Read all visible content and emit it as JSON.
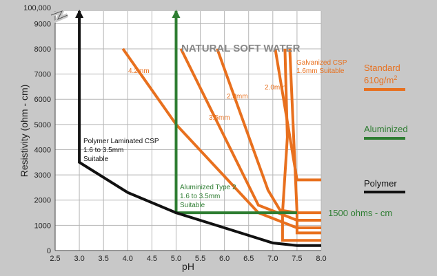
{
  "chart_data": {
    "type": "line",
    "title": "NATURAL SOFT WATER",
    "xlabel": "pH",
    "ylabel": "Resistivity (ohm - cm)",
    "xlim": [
      2.5,
      8.0
    ],
    "ylim": [
      0,
      9500
    ],
    "x_ticks": [
      "2.5",
      "3.0",
      "3.5",
      "4.0",
      "4.5",
      "5.0",
      "5.5",
      "6.0",
      "6.5",
      "7.0",
      "7.5",
      "8.0"
    ],
    "y_ticks": [
      "0",
      "1000",
      "2000",
      "3000",
      "4000",
      "5000",
      "6000",
      "7000",
      "8000",
      "9000"
    ],
    "y_top_label": "100,000",
    "grid": true,
    "colors": {
      "standard": "#e8701e",
      "aluminized": "#2e7d32",
      "polymer": "#111111"
    },
    "series": [
      {
        "name": "Standard 610g/m2",
        "label": "4.2mm",
        "color": "#e8701e",
        "points": [
          [
            3.9,
            8000
          ],
          [
            5.0,
            5000
          ],
          [
            6.7,
            1500
          ],
          [
            7.5,
            900
          ],
          [
            8.0,
            900
          ]
        ]
      },
      {
        "name": "Standard 610g/m2",
        "label": "3.5mm",
        "color": "#e8701e",
        "points": [
          [
            5.1,
            8000
          ],
          [
            6.7,
            1800
          ],
          [
            7.5,
            1200
          ],
          [
            8.0,
            1200
          ]
        ]
      },
      {
        "name": "Standard 610g/m2",
        "label": "2.8mm",
        "color": "#e8701e",
        "points": [
          [
            5.85,
            8000
          ],
          [
            6.9,
            2400
          ],
          [
            7.15,
            1600
          ],
          [
            7.5,
            1500
          ],
          [
            8.0,
            1500
          ]
        ]
      },
      {
        "name": "Standard 610g/m2",
        "label": "2.0mm",
        "color": "#e8701e",
        "points": [
          [
            7.05,
            8000
          ],
          [
            7.5,
            2800
          ],
          [
            8.0,
            2800
          ]
        ]
      },
      {
        "name": "Standard 610g/m2",
        "label": "1.6mm",
        "color": "#e8701e",
        "points": [
          [
            7.35,
            8000
          ],
          [
            7.5,
            1500
          ],
          [
            7.5,
            700
          ],
          [
            8.0,
            700
          ]
        ]
      },
      {
        "name": "Standard 610g/m2",
        "label": "",
        "color": "#e8701e",
        "points": [
          [
            7.25,
            8000
          ],
          [
            7.3,
            4500
          ],
          [
            7.2,
            1500
          ],
          [
            7.2,
            400
          ],
          [
            8.0,
            400
          ]
        ]
      },
      {
        "name": "Aluminized",
        "label": "Aluminized Type 2",
        "color": "#2e7d32",
        "points": [
          [
            5.0,
            9500
          ],
          [
            5.0,
            1500
          ],
          [
            7.5,
            1500
          ]
        ]
      },
      {
        "name": "Polymer",
        "label": "Polymer Laminated CSP",
        "color": "#111111",
        "points": [
          [
            3.0,
            9500
          ],
          [
            3.0,
            3500
          ],
          [
            4.0,
            2300
          ],
          [
            5.0,
            1500
          ],
          [
            6.0,
            900
          ],
          [
            6.5,
            600
          ],
          [
            7.0,
            300
          ],
          [
            7.5,
            200
          ],
          [
            8.0,
            200
          ]
        ]
      }
    ],
    "annotations": {
      "title": "NATURAL SOFT WATER",
      "thickness_42": "4.2mm",
      "thickness_35": "3.5mm",
      "thickness_28": "2.8mm",
      "thickness_20": "2.0mm",
      "galvanized_line1": "Galvanized CSP",
      "galvanized_line2": "1.6mm Suitable",
      "polymer_line1": "Polymer Laminated CSP",
      "polymer_line2": "1.6 to 3.5mm",
      "polymer_line3": "Suitable",
      "alum_line1": "Aluminized Type 2",
      "alum_line2": "1.6 to 3.5mm",
      "alum_line3": "Suitable",
      "threshold": "1500 ohms - cm"
    },
    "legend": {
      "placement": "right",
      "standard_line1": "Standard",
      "standard_line2": "610g/m",
      "standard_sup": "2",
      "aluminized": "Aluminized",
      "polymer": "Polymer"
    }
  }
}
